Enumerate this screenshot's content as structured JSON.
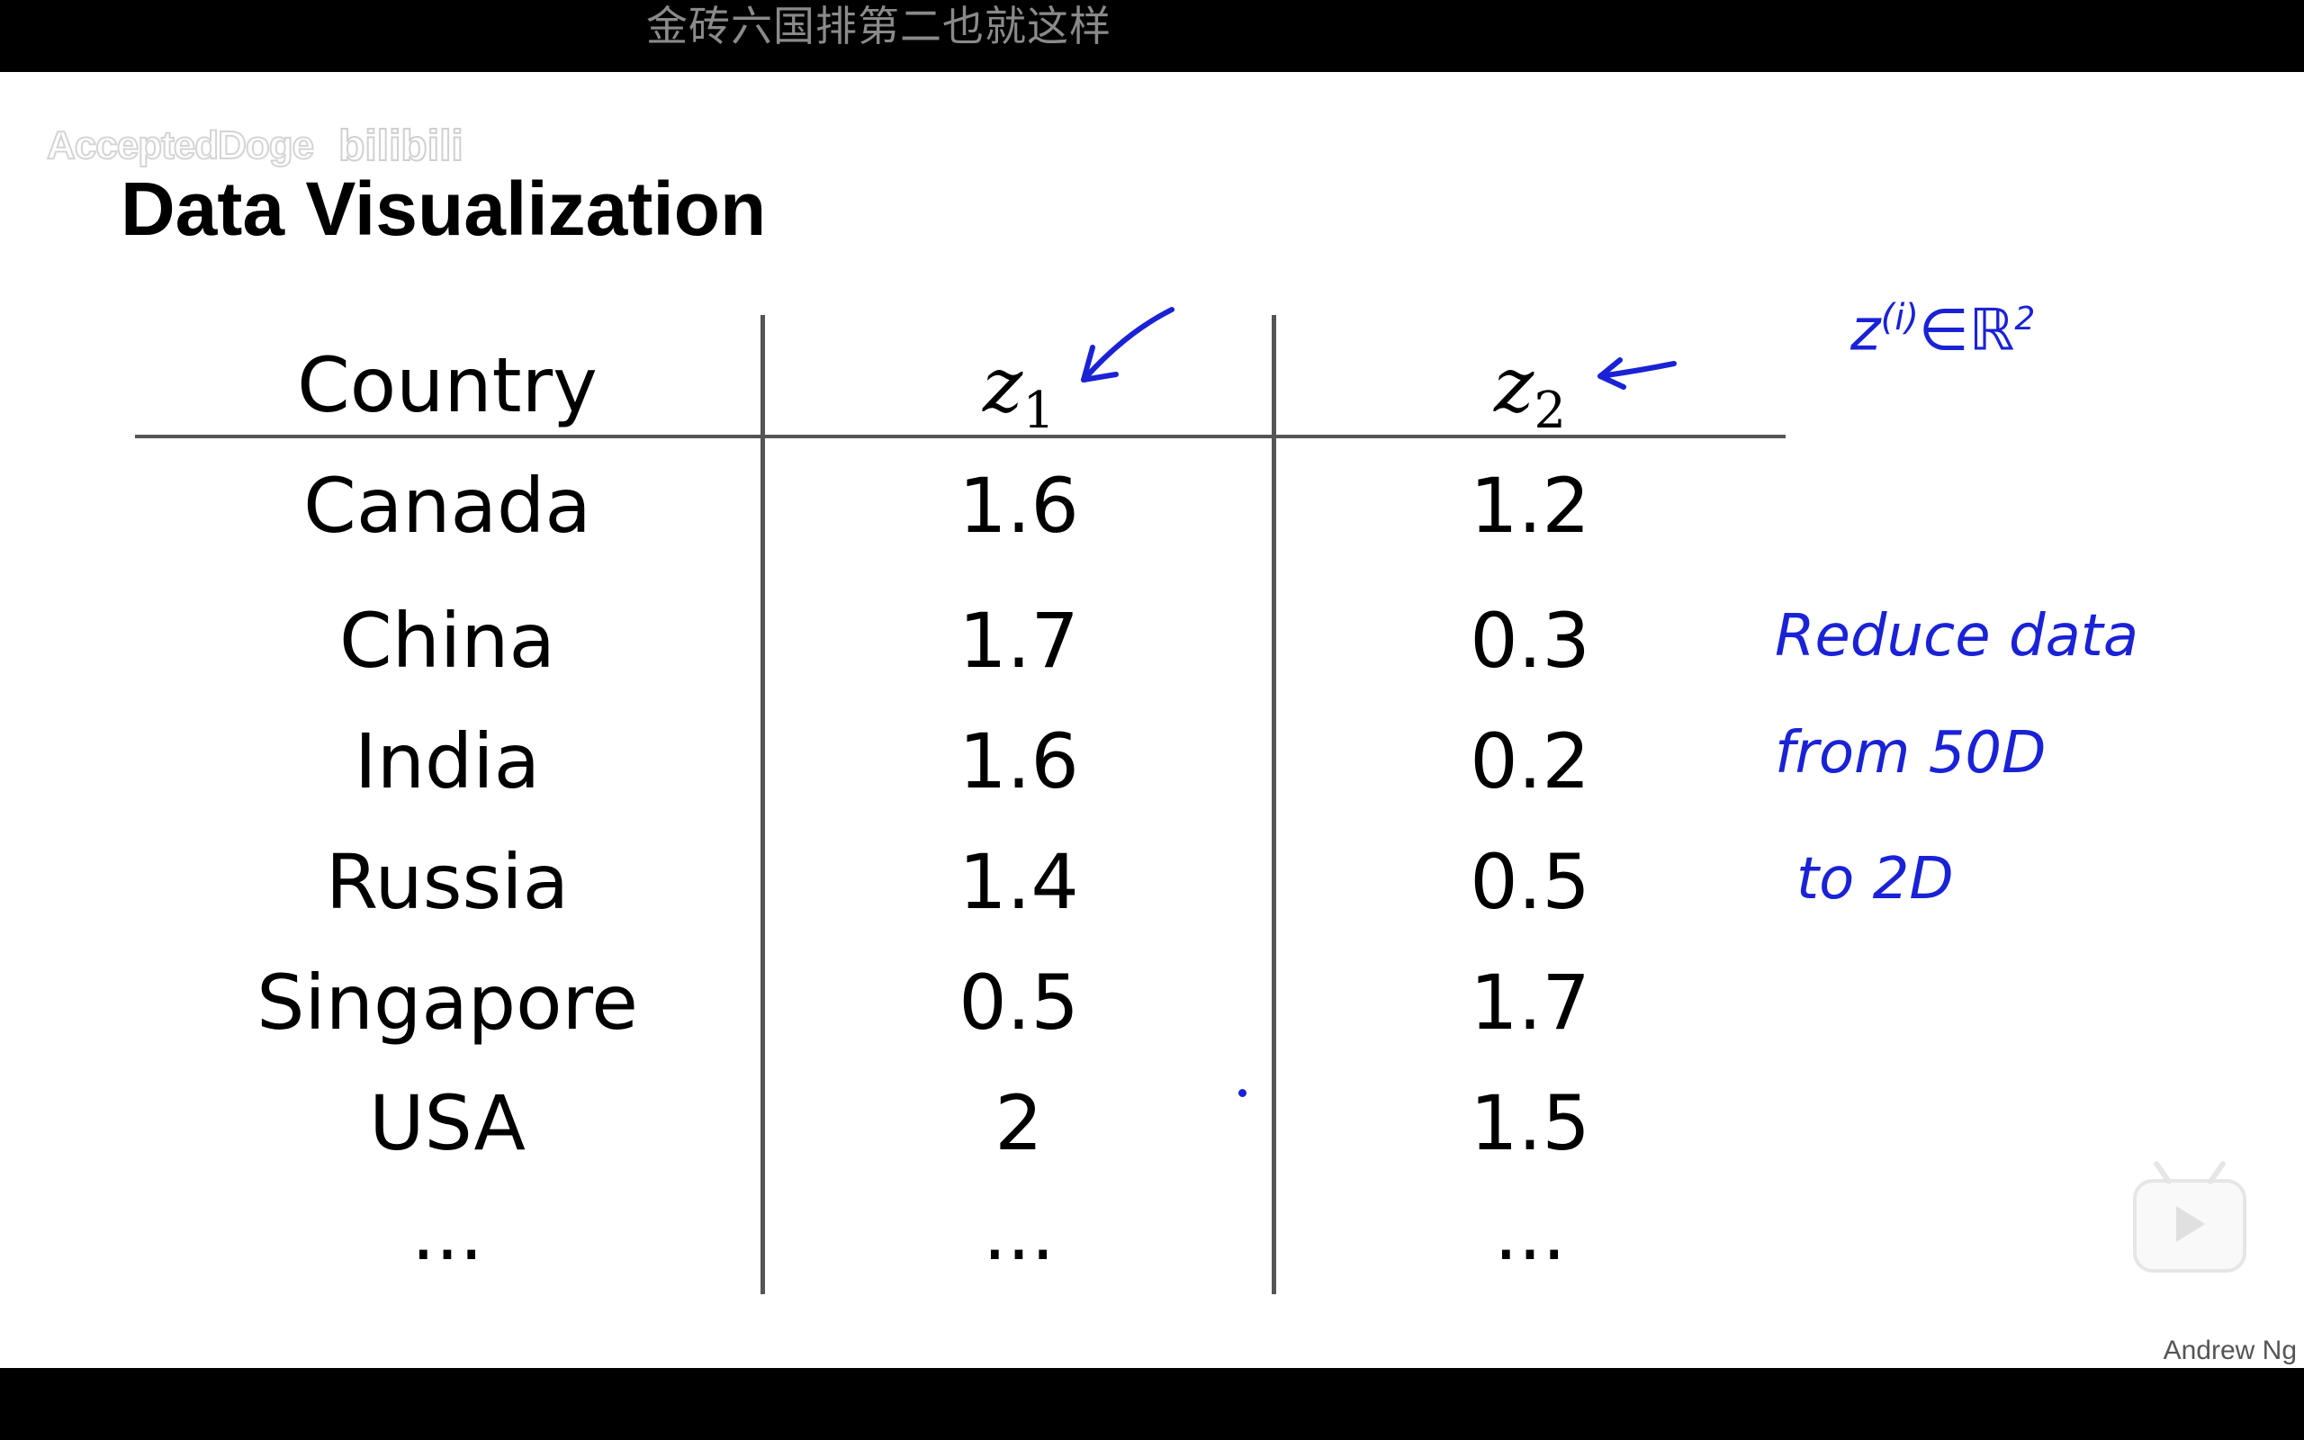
{
  "danmaku": {
    "text": "金砖六国排第二也就这样"
  },
  "watermark": {
    "user": "AcceptedDoge",
    "logo": "bilibili"
  },
  "slide": {
    "title": "Data Visualization",
    "author": "Andrew Ng",
    "table": {
      "header": {
        "country": "Country",
        "z1_var": "z",
        "z1_sub": "1",
        "z2_var": "z",
        "z2_sub": "2"
      },
      "rows": [
        {
          "country": "Canada",
          "z1": "1.6",
          "z2": "1.2"
        },
        {
          "country": "China",
          "z1": "1.7",
          "z2": "0.3"
        },
        {
          "country": "India",
          "z1": "1.6",
          "z2": "0.2"
        },
        {
          "country": "Russia",
          "z1": "1.4",
          "z2": "0.5"
        },
        {
          "country": "Singapore",
          "z1": "0.5",
          "z2": "1.7"
        },
        {
          "country": "USA",
          "z1": "2",
          "z2": "1.5"
        },
        {
          "country": "...",
          "z1": "...",
          "z2": "..."
        }
      ]
    },
    "annotations": {
      "formula": "z",
      "formula_sup": "(i)",
      "formula_rest": "∈ℝ",
      "formula_sup2": "2",
      "note_line1": "Reduce data",
      "note_line2": "from 50D",
      "note_line3": "to 2D",
      "ink_color": "#1a22d6"
    }
  },
  "player": {
    "play_icon": "play-icon"
  }
}
